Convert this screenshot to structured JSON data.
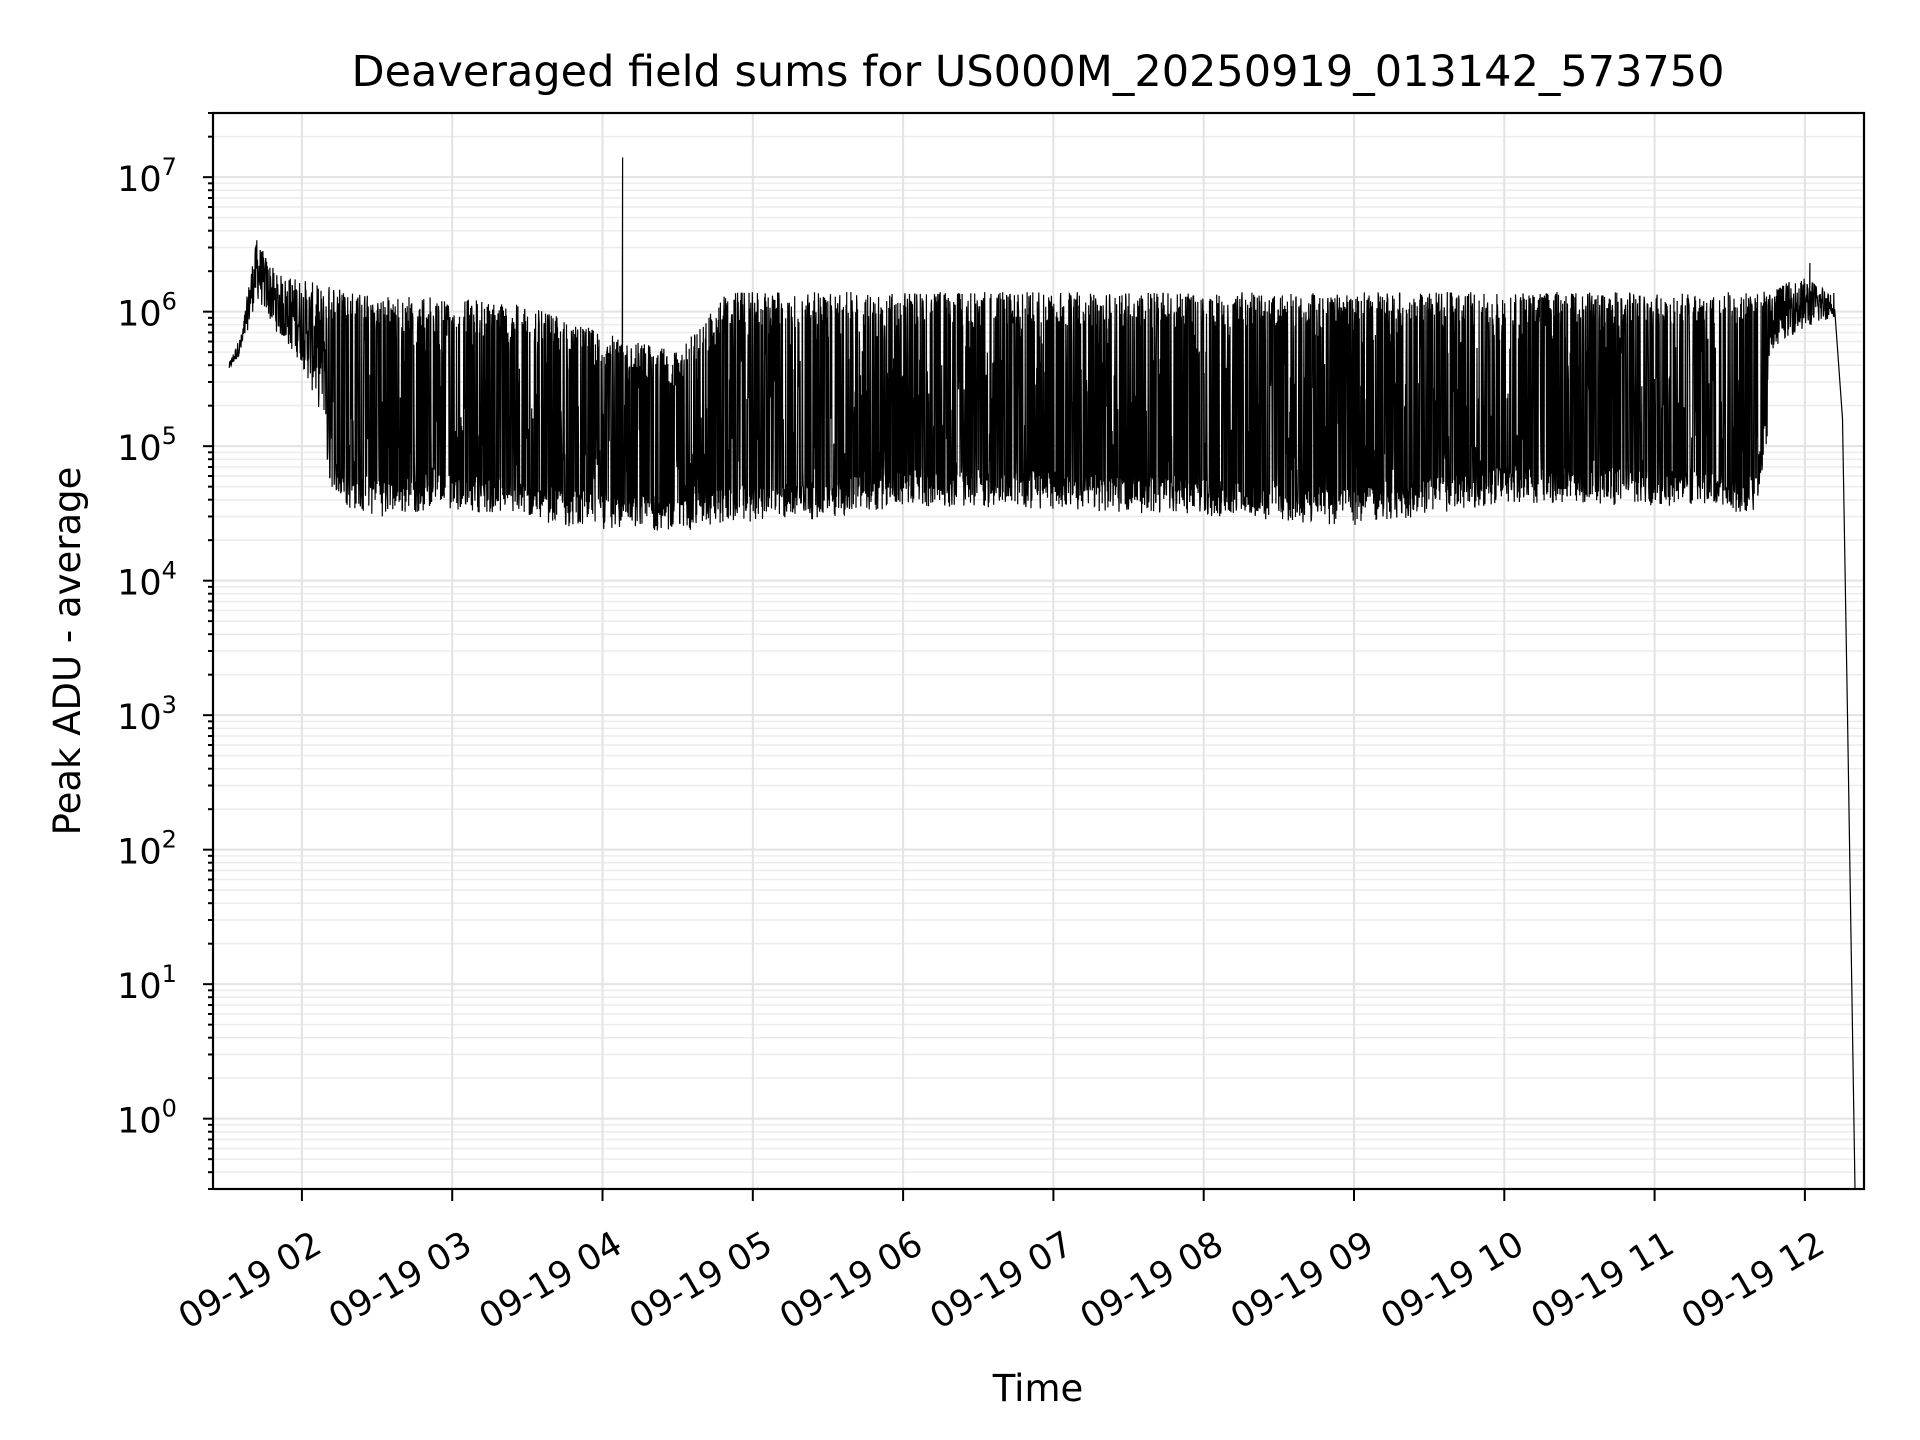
{
  "chart_data": {
    "type": "line",
    "title": "Deaveraged field sums for US000M_20250919_013142_573750",
    "xlabel": "Time",
    "ylabel": "Peak ADU - average",
    "yscale": "log",
    "grid": "major and minor",
    "x_start": "2025-09-19T01:31:42",
    "x_ticks": [
      "09-19 02",
      "09-19 03",
      "09-19 04",
      "09-19 05",
      "09-19 06",
      "09-19 07",
      "09-19 08",
      "09-19 09",
      "09-19 10",
      "09-19 11",
      "09-19 12"
    ],
    "y_ticks": [
      {
        "base": "10",
        "exp": "0"
      },
      {
        "base": "10",
        "exp": "1"
      },
      {
        "base": "10",
        "exp": "2"
      },
      {
        "base": "10",
        "exp": "3"
      },
      {
        "base": "10",
        "exp": "4"
      },
      {
        "base": "10",
        "exp": "5"
      },
      {
        "base": "10",
        "exp": "6"
      },
      {
        "base": "10",
        "exp": "7"
      }
    ],
    "ylim": [
      0.3,
      30000000
    ],
    "series": [
      {
        "color": "#000000",
        "note_values": "approximate envelope: rapidly alternating between lower and upper bound (peak ADU)",
        "envelope": [
          {
            "t": "01:31",
            "low": 350000,
            "high": 420000
          },
          {
            "t": "01:36",
            "low": 450000,
            "high": 700000
          },
          {
            "t": "01:40",
            "low": 700000,
            "high": 2300000
          },
          {
            "t": "01:42",
            "low": 900000,
            "high": 3400000
          },
          {
            "t": "01:50",
            "low": 500000,
            "high": 1900000
          },
          {
            "t": "02:00",
            "low": 250000,
            "high": 1800000
          },
          {
            "t": "02:06",
            "low": 100000,
            "high": 1600000
          },
          {
            "t": "02:15",
            "low": 40000,
            "high": 1500000
          },
          {
            "t": "02:30",
            "low": 33000,
            "high": 1300000
          },
          {
            "t": "03:00",
            "low": 38000,
            "high": 1300000
          },
          {
            "t": "03:30",
            "low": 32000,
            "high": 1100000
          },
          {
            "t": "04:00",
            "low": 25000,
            "high": 700000
          },
          {
            "t": "04:30",
            "low": 25000,
            "high": 500000
          },
          {
            "t": "04:50",
            "low": 30000,
            "high": 1400000
          },
          {
            "t": "05:30",
            "low": 32000,
            "high": 1400000
          },
          {
            "t": "06:00",
            "low": 40000,
            "high": 1400000
          },
          {
            "t": "07:00",
            "low": 38000,
            "high": 1400000
          },
          {
            "t": "08:00",
            "low": 33000,
            "high": 1400000
          },
          {
            "t": "09:00",
            "low": 28000,
            "high": 1400000
          },
          {
            "t": "10:00",
            "low": 42000,
            "high": 1400000
          },
          {
            "t": "11:00",
            "low": 40000,
            "high": 1400000
          },
          {
            "t": "11:40",
            "low": 35000,
            "high": 1400000
          },
          {
            "t": "11:50",
            "low": 450000,
            "high": 1600000
          },
          {
            "t": "12:00",
            "low": 550000,
            "high": 1800000
          },
          {
            "t": "12:12",
            "low": 800000,
            "high": 1400000
          },
          {
            "t": "12:15",
            "low": 160000,
            "high": 160000
          },
          {
            "t": "12:17",
            "low": 1000,
            "high": 1000
          },
          {
            "t": "12:20",
            "low": 0.3,
            "high": 0.3
          }
        ],
        "spikes": [
          {
            "t": "01:42",
            "value": 3400000
          },
          {
            "t": "04:08",
            "value": 14000000
          },
          {
            "t": "12:02",
            "value": 2300000
          }
        ]
      }
    ]
  }
}
